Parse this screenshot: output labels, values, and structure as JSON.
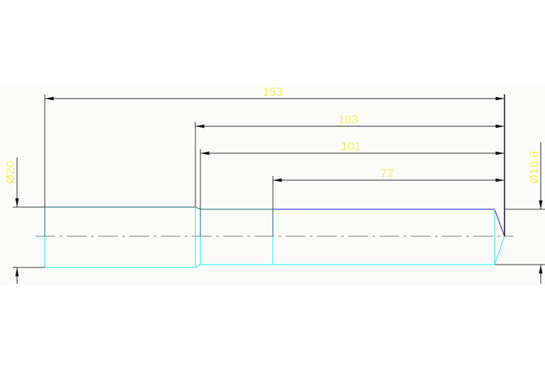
{
  "drawing": {
    "dimensions": {
      "overall_length": "153",
      "length_103": "103",
      "length_101": "101",
      "length_77": "77",
      "diameter_left": "Ø20",
      "diameter_right": "Ø18.8"
    },
    "colors": {
      "background": "#fbfcfa",
      "dimension_line": "#222222",
      "dimension_text": "#f2f25a",
      "outline_upper": "#2f8080",
      "outline_lower": "#44eeee",
      "outline_blue": "#3a3acc",
      "centerline": "#777777"
    }
  }
}
